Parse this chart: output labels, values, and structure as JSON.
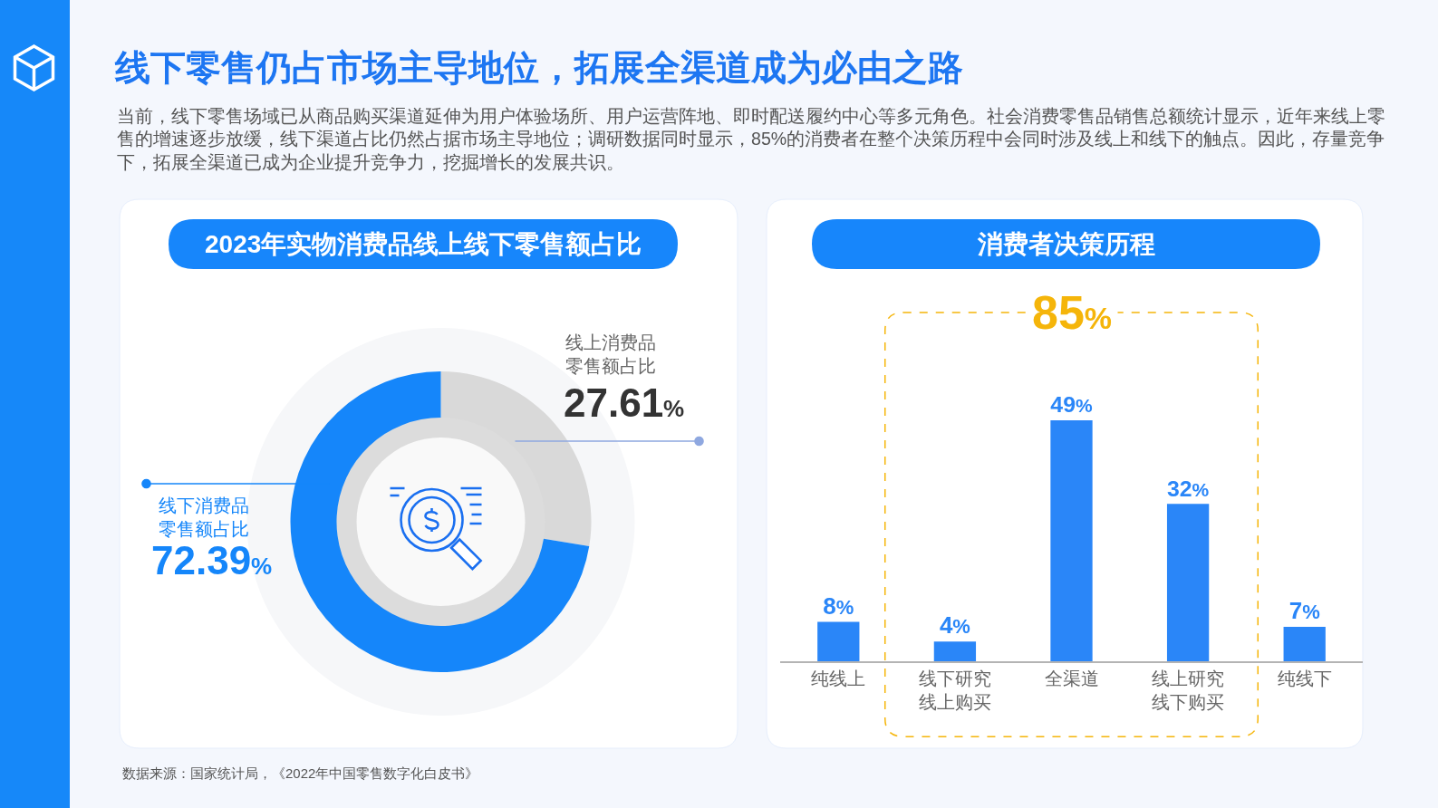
{
  "chart_data": [
    {
      "type": "other",
      "title": "线下零售仍占市场主导地位，拓展全渠道成为必由之路",
      "subtitle": "当前，线下零售场域已从商品购买渠道延伸为用户体验场所、用户运营阵地、即时配送履约中心等多元角色。社会消费零售品销售总额统计显示，近年来线上零售的增速逐步放缓，线下渠道占比仍然占据市场主导地位；调研数据同时显示，85%的消费者在整个决策历程中会同时涉及线上和线下的触点。因此，存量竞争下，拓展全渠道已成为企业提升竞争力，挖掘增长的发展共识。",
      "annotations": [
        "数据来源：国家统计局，《2022年中国零售数字化白皮书》"
      ]
    },
    {
      "type": "donut",
      "title": "2023年实物消费品线上线下零售额占比",
      "categories": [
        "线上消费品零售额占比",
        "线下消费品零售额占比"
      ],
      "values": [
        27.61,
        72.39
      ],
      "colors": [
        "#d9d9d9",
        "#1586fa"
      ],
      "value_labels": [
        "27.61%",
        "72.39%"
      ]
    },
    {
      "type": "bar",
      "title": "消费者决策历程",
      "categories": [
        "纯线上",
        "线下研究线上购买",
        "全渠道",
        "线上研究线下购买",
        "纯线下"
      ],
      "values": [
        8,
        4,
        49,
        32,
        7
      ],
      "color": "#2a86f8",
      "value_labels": [
        "8%",
        "4%",
        "49%",
        "32%",
        "7%"
      ],
      "annotations": [
        "85%"
      ]
    }
  ]
}
